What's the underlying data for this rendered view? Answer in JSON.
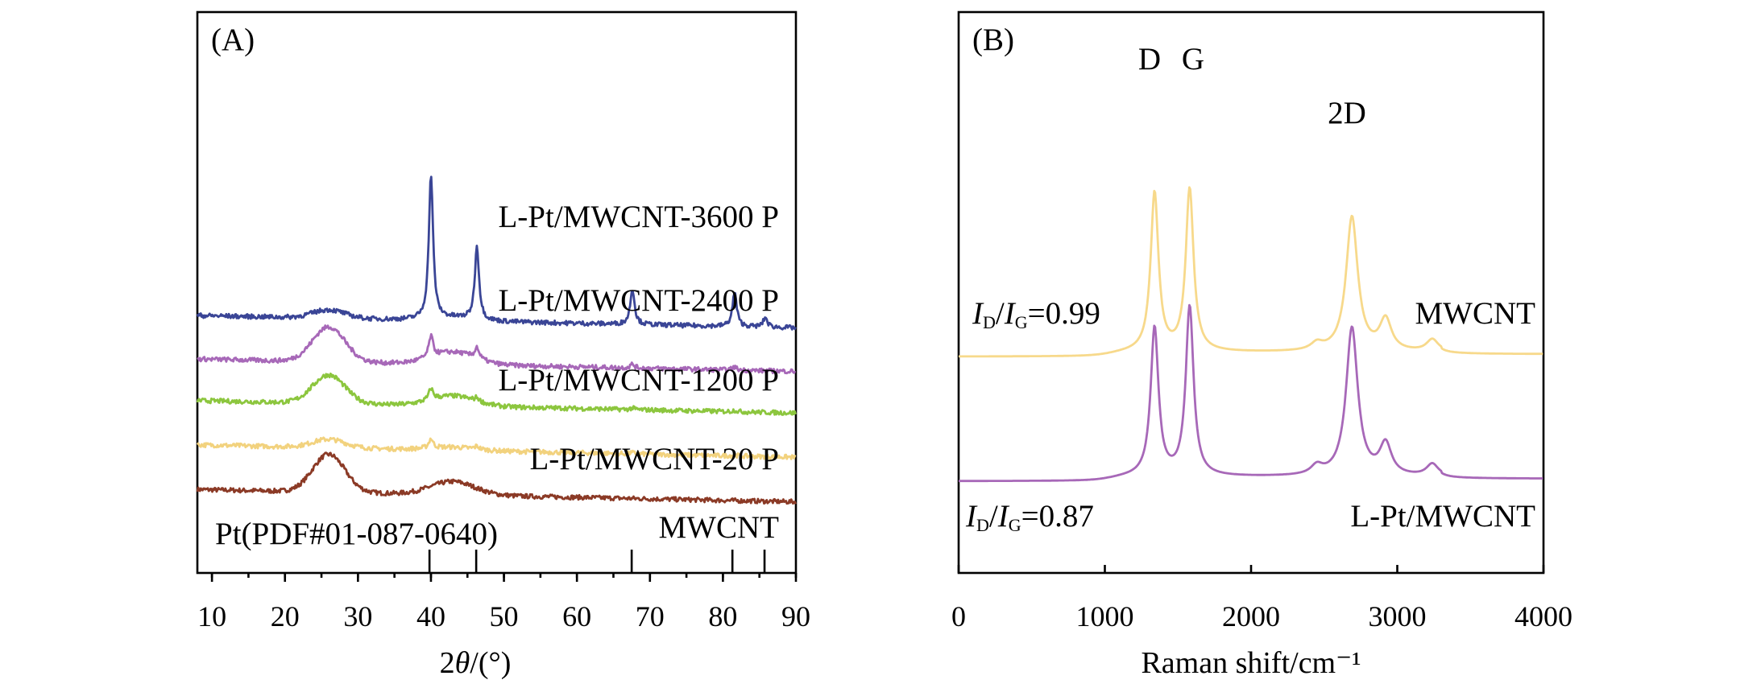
{
  "chart_data": [
    {
      "type": "line",
      "panel_label": "(A)",
      "xlabel_prefix": "2",
      "xlabel_symbol": "θ",
      "xlabel_suffix": "/(°)",
      "ylabel": "",
      "xlim": [
        8,
        90
      ],
      "xticks": [
        "10",
        "20",
        "30",
        "40",
        "50",
        "60",
        "70",
        "80",
        "90"
      ],
      "reference_label": "Pt(PDF#01-087-0640)",
      "reference_peaks": [
        39.8,
        46.2,
        67.5,
        81.3,
        85.7
      ],
      "series": [
        {
          "name": "MWCNT",
          "color": "#8b3a26",
          "baseline": 0.25,
          "halo": 1.0,
          "peaks": [
            [
              40.0,
              0.0
            ],
            [
              46.3,
              0.0
            ],
            [
              67.6,
              0.0
            ],
            [
              81.6,
              0.0
            ]
          ]
        },
        {
          "name": "L-Pt/MWCNT-20 P",
          "color": "#f2d27e",
          "baseline": 1.43,
          "halo": 0.22,
          "peaks": [
            [
              40.0,
              0.25
            ],
            [
              46.3,
              0.08
            ],
            [
              67.6,
              0.03
            ],
            [
              81.6,
              0.03
            ]
          ]
        },
        {
          "name": "L-Pt/MWCNT-1200 P",
          "color": "#8cc63e",
          "baseline": 2.6,
          "halo": 0.75,
          "peaks": [
            [
              40.0,
              0.3
            ],
            [
              46.3,
              0.1
            ],
            [
              67.6,
              0.04
            ],
            [
              81.6,
              0.04
            ]
          ]
        },
        {
          "name": "L-Pt/MWCNT-2400 P",
          "color": "#a768b8",
          "baseline": 3.7,
          "halo": 0.92,
          "peaks": [
            [
              40.0,
              0.55
            ],
            [
              46.3,
              0.3
            ],
            [
              67.6,
              0.1
            ],
            [
              81.6,
              0.08
            ]
          ]
        },
        {
          "name": "L-Pt/MWCNT-3600 P",
          "color": "#3a4596",
          "baseline": 4.85,
          "halo": 0.22,
          "peaks": [
            [
              40.0,
              3.8
            ],
            [
              46.3,
              1.95
            ],
            [
              67.6,
              0.95
            ],
            [
              81.6,
              0.9
            ],
            [
              85.8,
              0.25
            ]
          ]
        }
      ]
    },
    {
      "type": "line",
      "panel_label": "(B)",
      "xlabel": "Raman shift/cm⁻¹",
      "ylabel": "",
      "xlim": [
        0,
        4000
      ],
      "xticks": [
        "0",
        "1000",
        "2000",
        "3000",
        "4000"
      ],
      "peak_labels": [
        "D",
        "G",
        "2D"
      ],
      "series": [
        {
          "name": "MWCNT",
          "color": "#f7d98b",
          "ratio": "=0.99",
          "baseline": 3.6,
          "peaks": [
            [
              1340,
              4.6
            ],
            [
              1580,
              4.7
            ],
            [
              2450,
              0.2
            ],
            [
              2690,
              3.9
            ],
            [
              2920,
              0.9
            ],
            [
              3240,
              0.35
            ]
          ]
        },
        {
          "name": "L-Pt/MWCNT",
          "color": "#a768b8",
          "ratio": "=0.87",
          "baseline": 0.0,
          "peaks": [
            [
              1340,
              4.3
            ],
            [
              1580,
              4.9
            ],
            [
              2450,
              0.25
            ],
            [
              2690,
              4.3
            ],
            [
              2920,
              0.9
            ],
            [
              3240,
              0.35
            ]
          ]
        }
      ]
    }
  ]
}
